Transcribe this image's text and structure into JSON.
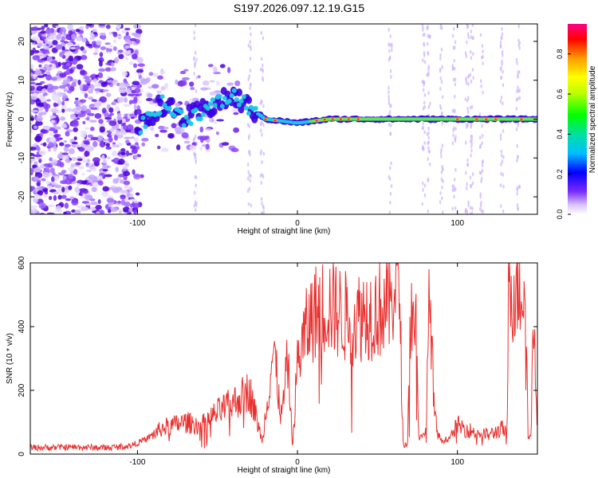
{
  "title": "S197.2026.097.12.19.G15",
  "chart_data": [
    {
      "type": "heatmap",
      "xlabel": "Height of straight line (km)",
      "ylabel": "Frequency (Hz)",
      "xlim": [
        -167,
        150
      ],
      "ylim": [
        -24.5,
        24.5
      ],
      "x_ticks": [
        -100,
        0,
        100
      ],
      "y_ticks": [
        -20,
        -10,
        0,
        10,
        20
      ],
      "colorbar": {
        "label": "Normalized spectral amplitude",
        "range": [
          0,
          0.95
        ],
        "ticks": [
          0.0,
          0.2,
          0.4,
          0.6,
          0.8
        ],
        "tick_labels": [
          "0.0",
          "0.2",
          "0.4",
          "0.6",
          "0.8"
        ]
      },
      "ridge": [
        {
          "x": -100,
          "y": -3
        },
        {
          "x": -85,
          "y": 4
        },
        {
          "x": -70,
          "y": 0
        },
        {
          "x": -55,
          "y": 3
        },
        {
          "x": -40,
          "y": 6
        },
        {
          "x": -30,
          "y": 3
        },
        {
          "x": -20,
          "y": 0
        },
        {
          "x": 0,
          "y": -1
        },
        {
          "x": 20,
          "y": 0
        },
        {
          "x": 150,
          "y": 0
        }
      ]
    },
    {
      "type": "line",
      "xlabel": "Height of straight line (km)",
      "ylabel": "SNR (10 * v/v)",
      "xlim": [
        -167,
        150
      ],
      "ylim": [
        0,
        600
      ],
      "x_ticks": [
        -100,
        0,
        100
      ],
      "y_ticks": [
        0,
        200,
        400,
        600
      ],
      "color": "#e8312f",
      "series": [
        {
          "name": "SNR",
          "points": [
            [
              -167,
              20
            ],
            [
              -140,
              22
            ],
            [
              -120,
              20
            ],
            [
              -105,
              25
            ],
            [
              -95,
              45
            ],
            [
              -85,
              80
            ],
            [
              -78,
              90
            ],
            [
              -70,
              100
            ],
            [
              -60,
              90
            ],
            [
              -50,
              130
            ],
            [
              -40,
              160
            ],
            [
              -30,
              200
            ],
            [
              -22,
              40
            ],
            [
              -15,
              330
            ],
            [
              -10,
              110
            ],
            [
              -6,
              300
            ],
            [
              -3,
              20
            ],
            [
              0,
              290
            ],
            [
              5,
              380
            ],
            [
              10,
              440
            ],
            [
              15,
              460
            ],
            [
              20,
              470
            ],
            [
              25,
              450
            ],
            [
              30,
              430
            ],
            [
              35,
              420
            ],
            [
              40,
              440
            ],
            [
              50,
              450
            ],
            [
              58,
              470
            ],
            [
              62,
              560
            ],
            [
              64,
              490
            ],
            [
              66,
              30
            ],
            [
              69,
              30
            ],
            [
              70,
              440
            ],
            [
              74,
              430
            ],
            [
              76,
              50
            ],
            [
              80,
              60
            ],
            [
              82,
              440
            ],
            [
              84,
              400
            ],
            [
              85,
              160
            ],
            [
              87,
              80
            ],
            [
              90,
              40
            ],
            [
              95,
              50
            ],
            [
              100,
              90
            ],
            [
              110,
              70
            ],
            [
              120,
              60
            ],
            [
              128,
              80
            ],
            [
              131,
              60
            ],
            [
              132,
              520
            ],
            [
              140,
              530
            ],
            [
              143,
              540
            ],
            [
              144,
              60
            ],
            [
              146,
              50
            ],
            [
              147,
              380
            ],
            [
              148,
              370
            ],
            [
              150,
              80
            ]
          ]
        }
      ]
    }
  ]
}
